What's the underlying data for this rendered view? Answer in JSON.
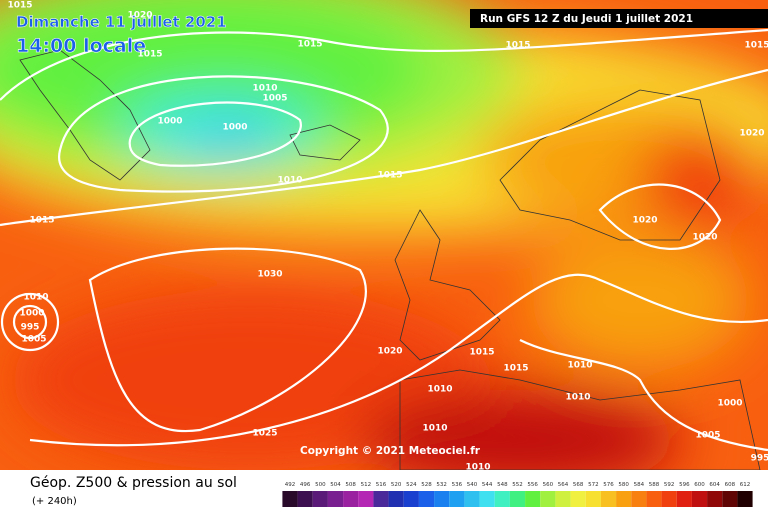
{
  "header": {
    "date": "Dimanche 11 juillet 2021",
    "time": "14:00 locale",
    "run": "Run GFS 12 Z du Jeudi 1 juillet 2021"
  },
  "copyright": "Copyright © 2021 Meteociel.fr",
  "isobar_labels": [
    "1015",
    "1020",
    "1015",
    "1015",
    "1015",
    "1015",
    "1010",
    "1005",
    "1000",
    "1000",
    "1010",
    "1015",
    "1020",
    "1015",
    "1020",
    "1020",
    "1030",
    "1010",
    "1000",
    "995",
    "1005",
    "1020",
    "1015",
    "1015",
    "1010",
    "1010",
    "1010",
    "1000",
    "1010",
    "1025",
    "1005",
    "1010",
    "995"
  ],
  "legend": {
    "title": "Géop. Z500 & pression au sol",
    "subtitle": "(+ 240h)",
    "scale": [
      492,
      496,
      500,
      504,
      508,
      512,
      516,
      520,
      524,
      528,
      532,
      536,
      540,
      544,
      548,
      552,
      556,
      560,
      564,
      568,
      572,
      576,
      580,
      584,
      588,
      592,
      596,
      600,
      604,
      608,
      612
    ],
    "colors": [
      "#2a0a2a",
      "#3c0f50",
      "#5a1a78",
      "#7a1f8f",
      "#9a22a0",
      "#b426b4",
      "#4a2a9a",
      "#2030b0",
      "#1a40d0",
      "#1a60e8",
      "#1a80f0",
      "#20a0f0",
      "#30c0f0",
      "#40e0f0",
      "#40f0c0",
      "#40f080",
      "#60f040",
      "#a0f040",
      "#d0f040",
      "#f0f040",
      "#f8e030",
      "#f8c020",
      "#f8a010",
      "#f88010",
      "#f86010",
      "#f04010",
      "#e02010",
      "#c01010",
      "#900808",
      "#600404",
      "#200000"
    ]
  }
}
